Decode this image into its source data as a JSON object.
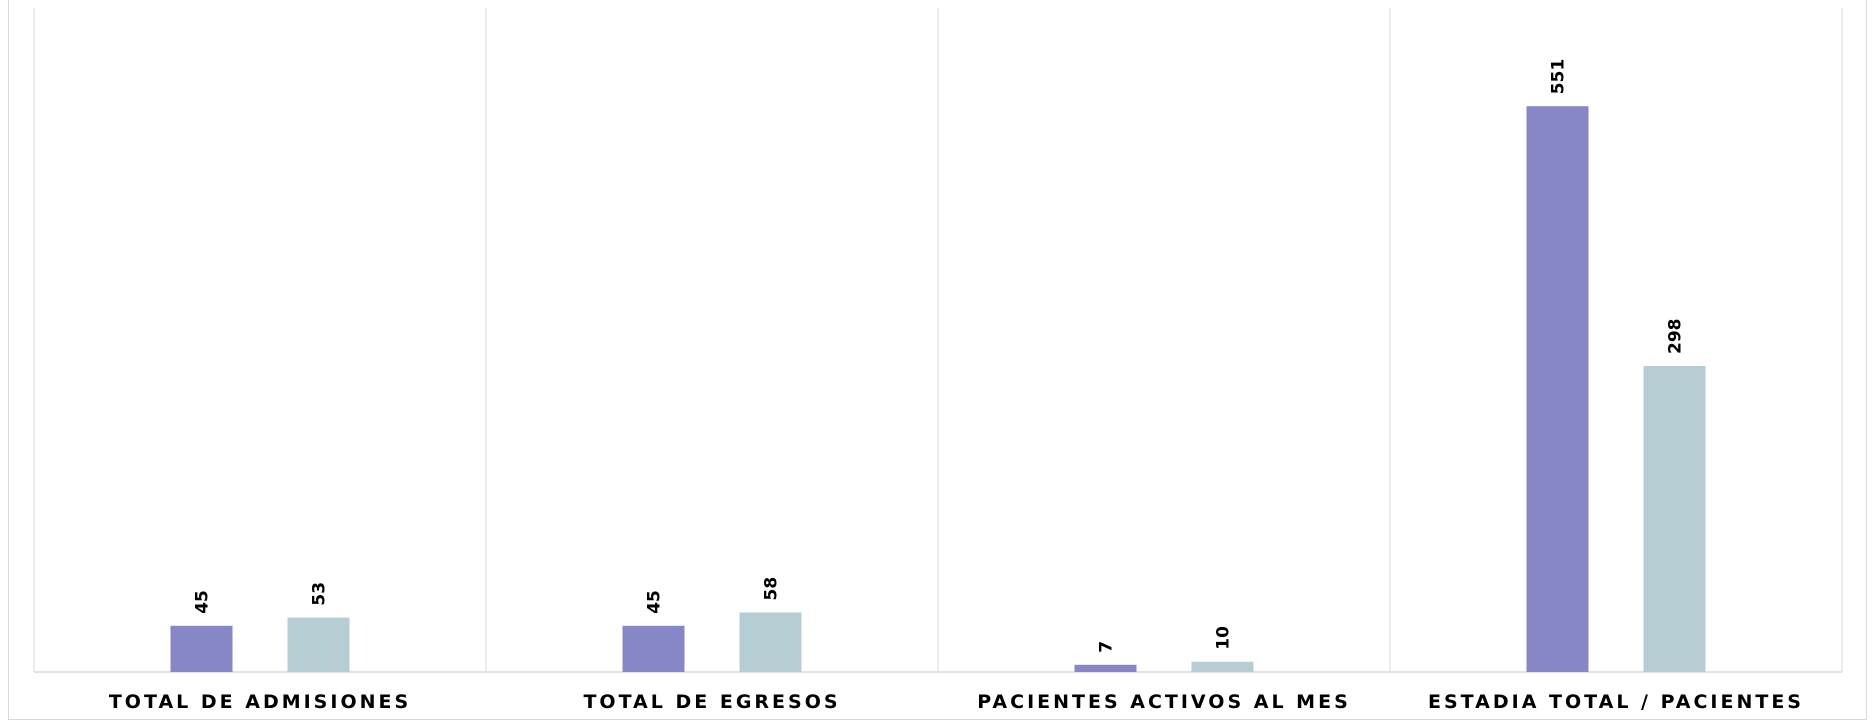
{
  "chart_data": {
    "type": "bar",
    "categories": [
      "TOTAL DE ADMISIONES",
      "TOTAL DE EGRESOS",
      "PACIENTES ACTIVOS AL MES",
      "ESTADIA TOTAL / PACIENTES"
    ],
    "series": [
      {
        "values": [
          45,
          45,
          7,
          551
        ],
        "color": "#8786c6"
      },
      {
        "values": [
          53,
          58,
          10,
          298
        ],
        "color": "#b6ced3"
      }
    ],
    "title": "",
    "xlabel": "",
    "ylabel": "",
    "ylim": [
      0,
      600
    ],
    "grid": "vertical category separators",
    "legend": "none",
    "data_labels": "rotated, above bars"
  }
}
